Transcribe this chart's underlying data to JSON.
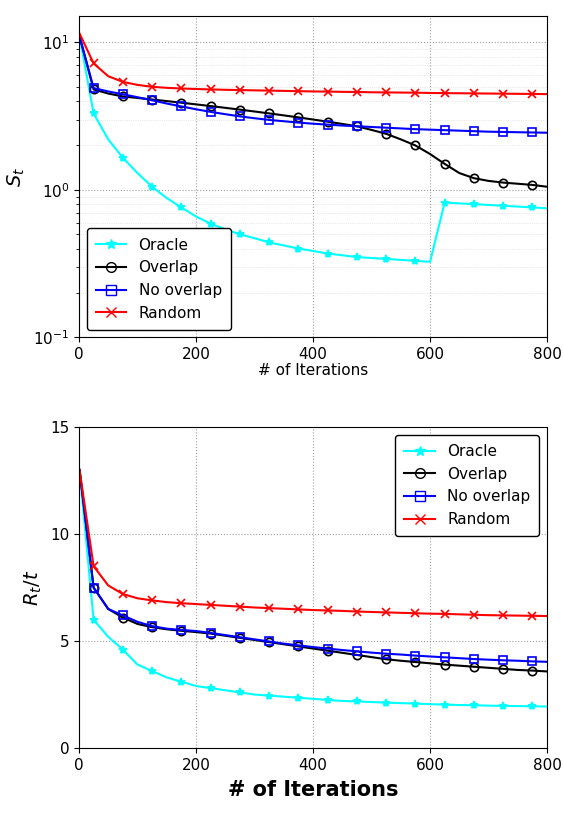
{
  "top_plot": {
    "ylabel": "$S_t$",
    "ylim_log": [
      0.1,
      15
    ],
    "xlim": [
      0,
      800
    ],
    "xticks": [
      0,
      200,
      400,
      600,
      800
    ],
    "series": {
      "oracle": {
        "color": "#00FFFF",
        "marker": "*",
        "x": [
          1,
          25,
          50,
          75,
          100,
          125,
          150,
          175,
          200,
          225,
          250,
          275,
          300,
          325,
          350,
          375,
          400,
          425,
          450,
          475,
          500,
          525,
          550,
          575,
          600,
          625,
          650,
          675,
          700,
          725,
          750,
          775,
          800
        ],
        "y": [
          11.0,
          3.3,
          2.2,
          1.65,
          1.3,
          1.05,
          0.88,
          0.76,
          0.66,
          0.59,
          0.54,
          0.5,
          0.47,
          0.44,
          0.42,
          0.4,
          0.385,
          0.37,
          0.36,
          0.35,
          0.345,
          0.34,
          0.335,
          0.33,
          0.325,
          0.82,
          0.81,
          0.8,
          0.79,
          0.78,
          0.77,
          0.76,
          0.75
        ]
      },
      "overlap": {
        "color": "#000000",
        "marker": "o",
        "x": [
          1,
          25,
          50,
          75,
          100,
          125,
          150,
          175,
          200,
          225,
          250,
          275,
          300,
          325,
          350,
          375,
          400,
          425,
          450,
          475,
          500,
          525,
          550,
          575,
          600,
          625,
          650,
          675,
          700,
          725,
          750,
          775,
          800
        ],
        "y": [
          11.0,
          4.8,
          4.5,
          4.3,
          4.2,
          4.1,
          4.0,
          3.9,
          3.8,
          3.7,
          3.6,
          3.5,
          3.4,
          3.3,
          3.2,
          3.1,
          3.0,
          2.9,
          2.8,
          2.7,
          2.55,
          2.4,
          2.2,
          2.0,
          1.75,
          1.5,
          1.3,
          1.2,
          1.15,
          1.12,
          1.1,
          1.08,
          1.05
        ]
      },
      "no_overlap": {
        "color": "#0000FF",
        "marker": "s",
        "x": [
          1,
          25,
          50,
          75,
          100,
          125,
          150,
          175,
          200,
          225,
          250,
          275,
          300,
          325,
          350,
          375,
          400,
          425,
          450,
          475,
          500,
          525,
          550,
          575,
          600,
          625,
          650,
          675,
          700,
          725,
          750,
          775,
          800
        ],
        "y": [
          11.0,
          4.9,
          4.65,
          4.45,
          4.25,
          4.05,
          3.85,
          3.68,
          3.52,
          3.38,
          3.26,
          3.15,
          3.06,
          2.98,
          2.92,
          2.86,
          2.81,
          2.77,
          2.73,
          2.7,
          2.67,
          2.64,
          2.61,
          2.58,
          2.56,
          2.54,
          2.52,
          2.5,
          2.48,
          2.47,
          2.46,
          2.45,
          2.44
        ]
      },
      "random": {
        "color": "#FF0000",
        "marker": "x",
        "x": [
          1,
          25,
          50,
          75,
          100,
          125,
          150,
          175,
          200,
          225,
          250,
          275,
          300,
          325,
          350,
          375,
          400,
          425,
          450,
          475,
          500,
          525,
          550,
          575,
          600,
          625,
          650,
          675,
          700,
          725,
          750,
          775,
          800
        ],
        "y": [
          11.5,
          7.2,
          5.9,
          5.4,
          5.15,
          5.0,
          4.92,
          4.87,
          4.83,
          4.8,
          4.77,
          4.75,
          4.73,
          4.71,
          4.69,
          4.67,
          4.65,
          4.64,
          4.62,
          4.61,
          4.59,
          4.58,
          4.57,
          4.56,
          4.54,
          4.53,
          4.52,
          4.51,
          4.5,
          4.49,
          4.48,
          4.47,
          4.46
        ]
      }
    }
  },
  "bottom_plot": {
    "ylabel": "$R_t/t$",
    "xlabel": "# of Iterations",
    "ylim": [
      0,
      15
    ],
    "xlim": [
      0,
      800
    ],
    "xticks": [
      0,
      200,
      400,
      600,
      800
    ],
    "yticks": [
      0,
      5,
      10,
      15
    ],
    "series": {
      "oracle": {
        "color": "#00FFFF",
        "marker": "*",
        "x": [
          1,
          25,
          50,
          75,
          100,
          125,
          150,
          175,
          200,
          225,
          250,
          275,
          300,
          325,
          350,
          375,
          400,
          425,
          450,
          475,
          500,
          525,
          550,
          575,
          600,
          625,
          650,
          675,
          700,
          725,
          750,
          775,
          800
        ],
        "y": [
          13.0,
          6.0,
          5.2,
          4.6,
          3.9,
          3.6,
          3.3,
          3.1,
          2.9,
          2.8,
          2.7,
          2.6,
          2.5,
          2.45,
          2.4,
          2.35,
          2.3,
          2.25,
          2.2,
          2.18,
          2.15,
          2.12,
          2.1,
          2.08,
          2.05,
          2.03,
          2.01,
          2.0,
          1.98,
          1.97,
          1.96,
          1.95,
          1.94
        ]
      },
      "overlap": {
        "color": "#000000",
        "marker": "o",
        "x": [
          1,
          25,
          50,
          75,
          100,
          125,
          150,
          175,
          200,
          225,
          250,
          275,
          300,
          325,
          350,
          375,
          400,
          425,
          450,
          475,
          500,
          525,
          550,
          575,
          600,
          625,
          650,
          675,
          700,
          725,
          750,
          775,
          800
        ],
        "y": [
          13.0,
          7.5,
          6.5,
          6.1,
          5.8,
          5.65,
          5.55,
          5.48,
          5.42,
          5.35,
          5.25,
          5.15,
          5.05,
          4.95,
          4.85,
          4.75,
          4.65,
          4.55,
          4.45,
          4.35,
          4.25,
          4.15,
          4.08,
          4.02,
          3.96,
          3.9,
          3.85,
          3.8,
          3.75,
          3.7,
          3.65,
          3.62,
          3.58
        ]
      },
      "no_overlap": {
        "color": "#0000FF",
        "marker": "s",
        "x": [
          1,
          25,
          50,
          75,
          100,
          125,
          150,
          175,
          200,
          225,
          250,
          275,
          300,
          325,
          350,
          375,
          400,
          425,
          450,
          475,
          500,
          525,
          550,
          575,
          600,
          625,
          650,
          675,
          700,
          725,
          750,
          775,
          800
        ],
        "y": [
          13.0,
          7.5,
          6.5,
          6.2,
          5.9,
          5.7,
          5.58,
          5.52,
          5.47,
          5.38,
          5.28,
          5.18,
          5.08,
          4.98,
          4.88,
          4.8,
          4.72,
          4.65,
          4.58,
          4.52,
          4.46,
          4.41,
          4.37,
          4.32,
          4.28,
          4.24,
          4.2,
          4.16,
          4.13,
          4.1,
          4.08,
          4.05,
          4.03
        ]
      },
      "random": {
        "color": "#FF0000",
        "marker": "x",
        "x": [
          1,
          25,
          50,
          75,
          100,
          125,
          150,
          175,
          200,
          225,
          250,
          275,
          300,
          325,
          350,
          375,
          400,
          425,
          450,
          475,
          500,
          525,
          550,
          575,
          600,
          625,
          650,
          675,
          700,
          725,
          750,
          775,
          800
        ],
        "y": [
          13.0,
          8.5,
          7.6,
          7.2,
          7.0,
          6.9,
          6.82,
          6.77,
          6.73,
          6.69,
          6.65,
          6.61,
          6.57,
          6.54,
          6.51,
          6.48,
          6.45,
          6.43,
          6.41,
          6.38,
          6.36,
          6.34,
          6.32,
          6.3,
          6.28,
          6.27,
          6.25,
          6.23,
          6.21,
          6.2,
          6.19,
          6.18,
          6.17
        ]
      }
    }
  },
  "legend_labels": [
    "Oracle",
    "Overlap",
    "No overlap",
    "Random"
  ],
  "top_xlabel_partial": "# of Iterations",
  "figsize": [
    5.64,
    8.22
  ],
  "dpi": 100
}
